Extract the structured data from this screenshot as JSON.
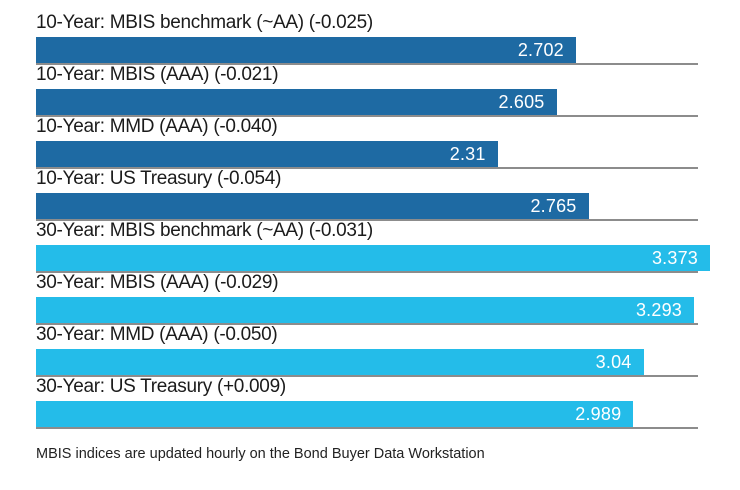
{
  "chart_data": {
    "type": "bar",
    "orientation": "horizontal",
    "title": "",
    "xlabel": "",
    "ylabel": "",
    "xlim": [
      0,
      3.373
    ],
    "grid": "per-row baseline under each bar",
    "legend": "none",
    "categories": [
      "10-Year: MBIS benchmark (~AA) (-0.025)",
      "10-Year: MBIS (AAA) (-0.021)",
      "10-Year: MMD (AAA) (-0.040)",
      "10-Year: US Treasury (-0.054)",
      "30-Year: MBIS benchmark (~AA) (-0.031)",
      "30-Year: MBIS (AAA) (-0.029)",
      "30-Year: MMD (AAA) (-0.050)",
      "30-Year: US Treasury (+0.009)"
    ],
    "rows": [
      {
        "label": "10-Year: MBIS benchmark (~AA) (-0.025)",
        "value": 2.702,
        "display": "2.702",
        "change": "-0.025",
        "group": "10-Year"
      },
      {
        "label": "10-Year: MBIS (AAA) (-0.021)",
        "value": 2.605,
        "display": "2.605",
        "change": "-0.021",
        "group": "10-Year"
      },
      {
        "label": "10-Year: MMD (AAA) (-0.040)",
        "value": 2.31,
        "display": "2.31",
        "change": "-0.040",
        "group": "10-Year"
      },
      {
        "label": "10-Year: US Treasury (-0.054)",
        "value": 2.765,
        "display": "2.765",
        "change": "-0.054",
        "group": "10-Year"
      },
      {
        "label": "30-Year: MBIS benchmark (~AA) (-0.031)",
        "value": 3.373,
        "display": "3.373",
        "change": "-0.031",
        "group": "30-Year"
      },
      {
        "label": "30-Year: MBIS (AAA) (-0.029)",
        "value": 3.293,
        "display": "3.293",
        "change": "-0.029",
        "group": "30-Year"
      },
      {
        "label": "30-Year: MMD (AAA) (-0.050)",
        "value": 3.04,
        "display": "3.04",
        "change": "-0.050",
        "group": "30-Year"
      },
      {
        "label": "30-Year: US Treasury (+0.009)",
        "value": 2.989,
        "display": "2.989",
        "change": "+0.009",
        "group": "30-Year"
      }
    ],
    "group_colors": {
      "10-Year": "#1e6aa3",
      "30-Year": "#24bce9"
    },
    "footnote": "MBIS indices are updated hourly on the Bond Buyer Data Workstation"
  },
  "colors": {
    "bar_10_year": "#1e6aa3",
    "bar_30_year": "#24bce9",
    "axis_line": "#8c8c8c",
    "value_text": "#ffffff",
    "label_text": "#1b1b1b",
    "footnote_text": "#222222",
    "background": "#ffffff"
  }
}
